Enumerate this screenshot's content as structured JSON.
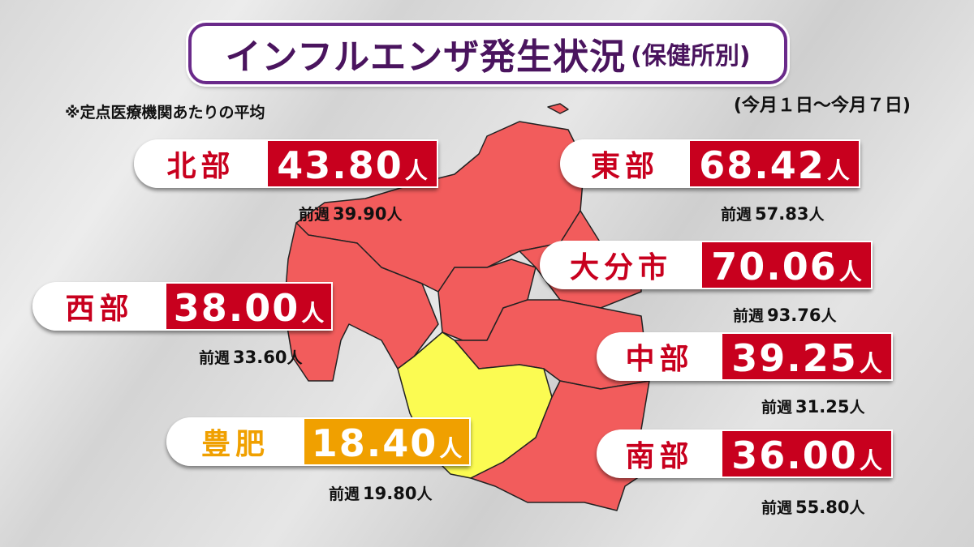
{
  "header": {
    "title": "インフルエンザ発生状況",
    "subtitle": "(保健所別)"
  },
  "note": "※定点医療機関あたりの平均",
  "period": "(今月１日～今月７日)",
  "unit": "人",
  "prev_label": "前週",
  "regions": [
    {
      "name": "北部",
      "value": "43.80",
      "prev": "39.90",
      "color": "#c8001e"
    },
    {
      "name": "東部",
      "value": "68.42",
      "prev": "57.83",
      "color": "#c8001e"
    },
    {
      "name": "大分市",
      "value": "70.06",
      "prev": "93.76",
      "color": "#c8001e"
    },
    {
      "name": "西部",
      "value": "38.00",
      "prev": "33.60",
      "color": "#c8001e"
    },
    {
      "name": "中部",
      "value": "39.25",
      "prev": "31.25",
      "color": "#c8001e"
    },
    {
      "name": "豊肥",
      "value": "18.40",
      "prev": "19.80",
      "color": "#f0a000"
    },
    {
      "name": "南部",
      "value": "36.00",
      "prev": "55.80",
      "color": "#c8001e"
    }
  ]
}
